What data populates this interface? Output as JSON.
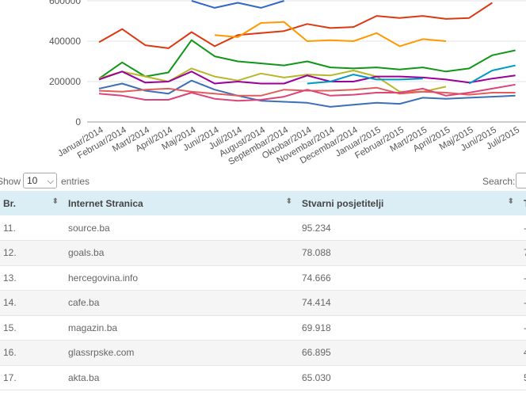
{
  "chart_data": {
    "type": "line",
    "x": [
      "Januar/2014",
      "Februar/2014",
      "Mart/2014",
      "April/2014",
      "Maj/2014",
      "Juni/2014",
      "Juli/2014",
      "August/2014",
      "Septembar/2014",
      "Oktobar/2014",
      "Novembar/2014",
      "Decembar/2014",
      "Januar/2015",
      "Februar/2015",
      "Mart/2015",
      "April/2015",
      "Maj/2015",
      "Juni/2015",
      "Juli/2015"
    ],
    "y_ticks": [
      "0",
      "200000",
      "400000",
      "600000"
    ],
    "ylim": [
      0,
      600000
    ],
    "series": [
      {
        "color": "#3366cc",
        "values": [
          null,
          null,
          null,
          null,
          600000,
          565000,
          590000,
          565000,
          600000,
          null,
          null,
          null,
          null,
          null,
          null,
          null,
          null,
          null,
          null
        ]
      },
      {
        "color": "#dc3912",
        "values": [
          395000,
          460000,
          380000,
          365000,
          445000,
          375000,
          430000,
          440000,
          450000,
          485000,
          465000,
          470000,
          525000,
          515000,
          525000,
          510000,
          515000,
          590000,
          null
        ]
      },
      {
        "color": "#ff9900",
        "values": [
          null,
          null,
          null,
          null,
          null,
          430000,
          420000,
          490000,
          495000,
          400000,
          405000,
          400000,
          440000,
          375000,
          410000,
          400000,
          null,
          null,
          null
        ]
      },
      {
        "color": "#109618",
        "values": [
          215000,
          295000,
          225000,
          245000,
          405000,
          325000,
          300000,
          290000,
          280000,
          300000,
          270000,
          265000,
          270000,
          260000,
          270000,
          250000,
          265000,
          330000,
          355000
        ]
      },
      {
        "color": "#b7b72c",
        "values": [
          215000,
          250000,
          225000,
          200000,
          265000,
          225000,
          205000,
          240000,
          220000,
          235000,
          230000,
          255000,
          225000,
          150000,
          150000,
          175000,
          null,
          null,
          null
        ]
      },
      {
        "color": "#990099",
        "values": [
          210000,
          250000,
          195000,
          200000,
          250000,
          190000,
          200000,
          190000,
          190000,
          230000,
          200000,
          200000,
          225000,
          225000,
          220000,
          210000,
          195000,
          215000,
          230000
        ]
      },
      {
        "color": "#0099c6",
        "values": [
          null,
          null,
          null,
          null,
          null,
          null,
          null,
          null,
          null,
          190000,
          200000,
          235000,
          210000,
          210000,
          215000,
          null,
          190000,
          255000,
          280000
        ]
      },
      {
        "color": "#3b6fb6",
        "values": [
          165000,
          190000,
          155000,
          140000,
          205000,
          160000,
          130000,
          105000,
          100000,
          95000,
          75000,
          85000,
          95000,
          90000,
          120000,
          115000,
          120000,
          125000,
          130000
        ]
      },
      {
        "color": "#e25c5c",
        "values": [
          155000,
          150000,
          160000,
          165000,
          150000,
          140000,
          130000,
          130000,
          160000,
          155000,
          155000,
          160000,
          170000,
          140000,
          150000,
          145000,
          135000,
          145000,
          145000
        ]
      },
      {
        "color": "#dd4477",
        "values": [
          140000,
          130000,
          110000,
          110000,
          145000,
          115000,
          105000,
          110000,
          125000,
          160000,
          130000,
          135000,
          145000,
          145000,
          165000,
          130000,
          145000,
          165000,
          185000
        ]
      }
    ]
  },
  "controls": {
    "show_label": "Show",
    "length_value": "10",
    "entries_label": "entries",
    "search_label": "Search:"
  },
  "table": {
    "headers": [
      "Br.",
      "Internet Stranica",
      "Stvarni posjetitelji",
      "T"
    ],
    "rows": [
      {
        "rank": "11.",
        "site": "source.ba",
        "visitors": "95.234",
        "extra": "-"
      },
      {
        "rank": "12.",
        "site": "goals.ba",
        "visitors": "78.088",
        "extra": "7"
      },
      {
        "rank": "13.",
        "site": "hercegovina.info",
        "visitors": "74.666",
        "extra": "-"
      },
      {
        "rank": "14.",
        "site": "cafe.ba",
        "visitors": "74.414",
        "extra": "-"
      },
      {
        "rank": "15.",
        "site": "magazin.ba",
        "visitors": "69.918",
        "extra": "-"
      },
      {
        "rank": "16.",
        "site": "glassrpske.com",
        "visitors": "66.895",
        "extra": "4"
      },
      {
        "rank": "17.",
        "site": "akta.ba",
        "visitors": "65.030",
        "extra": "5"
      }
    ]
  }
}
